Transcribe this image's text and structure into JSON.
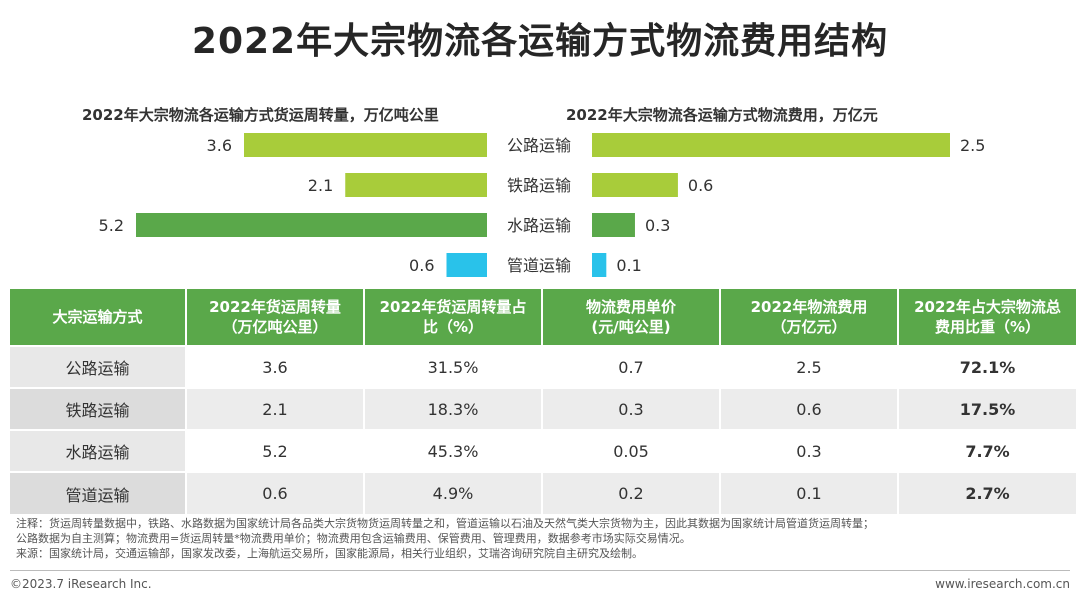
{
  "title": "2022年大宗物流各运输方式物流费用结构",
  "chart_data": [
    {
      "type": "bar",
      "orientation": "horizontal",
      "title": "2022年大宗物流各运输方式货运周转量，万亿吨公里",
      "categories": [
        "公路运输",
        "铁路运输",
        "水路运输",
        "管道运输"
      ],
      "values": [
        3.6,
        2.1,
        5.2,
        0.6
      ],
      "value_labels": [
        "3.6",
        "2.1",
        "5.2",
        "0.6"
      ],
      "colors": [
        "#a8cc3a",
        "#a8cc3a",
        "#5aa84a",
        "#29c2ea"
      ],
      "xlim": [
        0,
        5.2
      ],
      "direction": "right-to-left"
    },
    {
      "type": "bar",
      "orientation": "horizontal",
      "title": "2022年大宗物流各运输方式物流费用，万亿元",
      "categories": [
        "公路运输",
        "铁路运输",
        "水路运输",
        "管道运输"
      ],
      "values": [
        2.5,
        0.6,
        0.3,
        0.1
      ],
      "value_labels": [
        "2.5",
        "0.6",
        "0.3",
        "0.1"
      ],
      "colors": [
        "#a8cc3a",
        "#a8cc3a",
        "#5aa84a",
        "#29c2ea"
      ],
      "xlim": [
        0,
        2.5
      ],
      "direction": "left-to-right"
    }
  ],
  "table": {
    "headers": [
      [
        "大宗运输方式"
      ],
      [
        "2022年货运周转量",
        "（万亿吨公里）"
      ],
      [
        "2022年货运周转量占",
        "比（%）"
      ],
      [
        "物流费用单价",
        "(元/吨公里)"
      ],
      [
        "2022年物流费用",
        "（万亿元）"
      ],
      [
        "2022年占大宗物流总",
        "费用比重（%）"
      ]
    ],
    "rows": [
      [
        "公路运输",
        "3.6",
        "31.5%",
        "0.7",
        "2.5",
        "72.1%"
      ],
      [
        "铁路运输",
        "2.1",
        "18.3%",
        "0.3",
        "0.6",
        "17.5%"
      ],
      [
        "水路运输",
        "5.2",
        "45.3%",
        "0.05",
        "0.3",
        "7.7%"
      ],
      [
        "管道运输",
        "0.6",
        "4.9%",
        "0.2",
        "0.1",
        "2.7%"
      ]
    ]
  },
  "notes": [
    "注释：货运周转量数据中，铁路、水路数据为国家统计局各品类大宗货物货运周转量之和，管道运输以石油及天然气类大宗货物为主，因此其数据为国家统计局管道货运周转量；",
    "公路数据为自主测算；物流费用=货运周转量*物流费用单价；物流费用包含运输费用、保管费用、管理费用，数据参考市场实际交易情况。",
    "来源：国家统计局，交通运输部，国家发改委，上海航运交易所，国家能源局，相关行业组织，艾瑞咨询研究院自主研究及绘制。"
  ],
  "footer": {
    "copyright": "©2023.7 iResearch Inc.",
    "website": "www.iresearch.com.cn"
  }
}
